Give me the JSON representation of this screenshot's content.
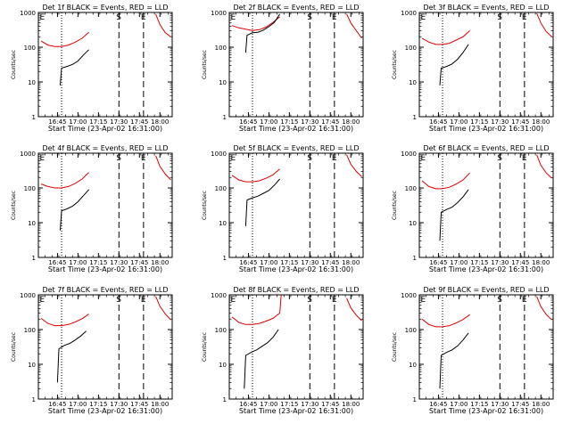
{
  "chart_data": [
    {
      "type": "line",
      "title": "Det 1f BLACK = Events, RED = LLD",
      "xlabel": "Start Time (23-Apr-02 16:31:00)",
      "ylabel": "Counts/sec",
      "x_tick_labels": [
        "16:45",
        "17:00",
        "17:15",
        "17:30",
        "17:45",
        "18:00"
      ],
      "y_tick_labels": [
        "1",
        "10",
        "100",
        "1000"
      ],
      "ylim": [
        1,
        1000
      ],
      "y_scale": "log",
      "xlim": [
        "16:31",
        "18:09"
      ],
      "markers": [
        {
          "label": "E",
          "x": "16:32"
        },
        {
          "label": "S",
          "x": "17:30"
        },
        {
          "label": "E",
          "x": "17:48"
        }
      ],
      "vlines": [
        {
          "x": "16:48",
          "style": "dotted"
        },
        {
          "x": "17:30",
          "style": "dashed"
        },
        {
          "x": "17:48",
          "style": "dashed"
        }
      ],
      "series": [
        {
          "name": "LLD",
          "color": "#e00000",
          "x": [
            "16:33",
            "16:38",
            "16:43",
            "16:48",
            "16:53",
            "16:58",
            "17:03",
            "17:08"
          ],
          "values": [
            150,
            115,
            105,
            105,
            115,
            140,
            180,
            270
          ],
          "x2": [
            "17:57",
            "18:00",
            "18:04",
            "18:08"
          ],
          "values2": [
            900,
            450,
            260,
            200
          ]
        },
        {
          "name": "Events",
          "color": "#000000",
          "x": [
            "16:47",
            "16:48",
            "16:52",
            "16:56",
            "17:00",
            "17:04",
            "17:08"
          ],
          "values": [
            8,
            25,
            28,
            32,
            40,
            60,
            85
          ]
        }
      ]
    },
    {
      "type": "line",
      "title": "Det 2f BLACK = Events, RED = LLD",
      "xlabel": "Start Time (23-Apr-02 16:31:00)",
      "ylabel": "Counts/sec",
      "x_tick_labels": [
        "16:45",
        "17:00",
        "17:15",
        "17:30",
        "17:45",
        "18:00"
      ],
      "y_tick_labels": [
        "1",
        "10",
        "100",
        "1000"
      ],
      "ylim": [
        1,
        1000
      ],
      "y_scale": "log",
      "xlim": [
        "16:31",
        "18:09"
      ],
      "markers": [
        {
          "label": "E",
          "x": "16:32"
        },
        {
          "label": "S",
          "x": "17:30"
        },
        {
          "label": "E",
          "x": "17:48"
        }
      ],
      "vlines": [
        {
          "x": "16:48",
          "style": "dotted"
        },
        {
          "x": "17:30",
          "style": "dashed"
        },
        {
          "x": "17:48",
          "style": "dashed"
        }
      ],
      "series": [
        {
          "name": "LLD",
          "color": "#e00000",
          "x": [
            "16:33",
            "16:38",
            "16:43",
            "16:48",
            "16:53",
            "16:58",
            "17:03",
            "17:08"
          ],
          "values": [
            420,
            360,
            330,
            300,
            320,
            380,
            520,
            750
          ],
          "x2": [
            "17:57",
            "18:00",
            "18:04",
            "18:08"
          ],
          "values2": [
            900,
            500,
            300,
            180
          ]
        },
        {
          "name": "Events",
          "color": "#000000",
          "x": [
            "16:43",
            "16:44",
            "16:48",
            "16:52",
            "16:56",
            "17:00",
            "17:04",
            "17:08"
          ],
          "values": [
            70,
            220,
            260,
            270,
            310,
            390,
            520,
            900
          ]
        }
      ]
    },
    {
      "type": "line",
      "title": "Det 3f BLACK = Events, RED = LLD",
      "xlabel": "Start Time (23-Apr-02 16:31:00)",
      "ylabel": "Counts/sec",
      "x_tick_labels": [
        "16:45",
        "17:00",
        "17:15",
        "17:30",
        "17:45",
        "18:00"
      ],
      "y_tick_labels": [
        "1",
        "10",
        "100",
        "1000"
      ],
      "ylim": [
        1,
        1000
      ],
      "y_scale": "log",
      "xlim": [
        "16:31",
        "18:09"
      ],
      "markers": [
        {
          "label": "E",
          "x": "16:32"
        },
        {
          "label": "S",
          "x": "17:30"
        },
        {
          "label": "E",
          "x": "17:48"
        }
      ],
      "vlines": [
        {
          "x": "16:48",
          "style": "dotted"
        },
        {
          "x": "17:30",
          "style": "dashed"
        },
        {
          "x": "17:48",
          "style": "dashed"
        }
      ],
      "series": [
        {
          "name": "LLD",
          "color": "#e00000",
          "x": [
            "16:33",
            "16:38",
            "16:43",
            "16:48",
            "16:53",
            "16:58",
            "17:03",
            "17:08"
          ],
          "values": [
            180,
            140,
            120,
            120,
            130,
            160,
            200,
            300
          ],
          "x2": [
            "17:57",
            "18:00",
            "18:04",
            "18:08"
          ],
          "values2": [
            950,
            500,
            280,
            200
          ]
        },
        {
          "name": "Events",
          "color": "#000000",
          "x": [
            "16:46",
            "16:47",
            "16:51",
            "16:55",
            "16:59",
            "17:03",
            "17:07"
          ],
          "values": [
            8,
            25,
            28,
            33,
            45,
            70,
            120
          ]
        }
      ]
    },
    {
      "type": "line",
      "title": "Det 4f BLACK = Events, RED = LLD",
      "xlabel": "Start Time (23-Apr-02 16:31:00)",
      "ylabel": "Counts/sec",
      "x_tick_labels": [
        "16:45",
        "17:00",
        "17:15",
        "17:30",
        "17:45",
        "18:00"
      ],
      "y_tick_labels": [
        "1",
        "10",
        "100",
        "1000"
      ],
      "ylim": [
        1,
        1000
      ],
      "y_scale": "log",
      "xlim": [
        "16:31",
        "18:09"
      ],
      "markers": [
        {
          "label": "E",
          "x": "16:32"
        },
        {
          "label": "S",
          "x": "17:30"
        },
        {
          "label": "E",
          "x": "17:48"
        }
      ],
      "vlines": [
        {
          "x": "16:48",
          "style": "dotted"
        },
        {
          "x": "17:30",
          "style": "dashed"
        },
        {
          "x": "17:48",
          "style": "dashed"
        }
      ],
      "series": [
        {
          "name": "LLD",
          "color": "#e00000",
          "x": [
            "16:33",
            "16:38",
            "16:43",
            "16:48",
            "16:53",
            "16:58",
            "17:03",
            "17:08"
          ],
          "values": [
            130,
            110,
            100,
            100,
            110,
            135,
            180,
            280
          ],
          "x2": [
            "17:57",
            "18:00",
            "18:04",
            "18:08"
          ],
          "values2": [
            850,
            420,
            250,
            170
          ]
        },
        {
          "name": "Events",
          "color": "#000000",
          "x": [
            "16:47",
            "16:48",
            "16:52",
            "16:56",
            "17:00",
            "17:04",
            "17:08"
          ],
          "values": [
            6,
            22,
            25,
            30,
            40,
            60,
            90
          ]
        }
      ]
    },
    {
      "type": "line",
      "title": "Det 5f BLACK = Events, RED = LLD",
      "xlabel": "Start Time (23-Apr-02 16:31:00)",
      "ylabel": "Counts/sec",
      "x_tick_labels": [
        "16:45",
        "17:00",
        "17:15",
        "17:30",
        "17:45",
        "18:00"
      ],
      "y_tick_labels": [
        "1",
        "10",
        "100",
        "1000"
      ],
      "ylim": [
        1,
        1000
      ],
      "y_scale": "log",
      "xlim": [
        "16:31",
        "18:09"
      ],
      "markers": [
        {
          "label": "E",
          "x": "16:32"
        },
        {
          "label": "S",
          "x": "17:30"
        },
        {
          "label": "E",
          "x": "17:48"
        }
      ],
      "vlines": [
        {
          "x": "16:48",
          "style": "dotted"
        },
        {
          "x": "17:30",
          "style": "dashed"
        },
        {
          "x": "17:48",
          "style": "dashed"
        }
      ],
      "series": [
        {
          "name": "LLD",
          "color": "#e00000",
          "x": [
            "16:33",
            "16:38",
            "16:43",
            "16:48",
            "16:53",
            "16:58",
            "17:03",
            "17:08"
          ],
          "values": [
            230,
            170,
            150,
            150,
            160,
            190,
            240,
            350
          ],
          "x2": [
            "17:57",
            "18:00",
            "18:04",
            "18:08"
          ],
          "values2": [
            900,
            480,
            300,
            210
          ]
        },
        {
          "name": "Events",
          "color": "#000000",
          "x": [
            "16:43",
            "16:44",
            "16:48",
            "16:52",
            "16:56",
            "17:00",
            "17:04",
            "17:08"
          ],
          "values": [
            8,
            45,
            52,
            58,
            70,
            85,
            120,
            180
          ]
        }
      ]
    },
    {
      "type": "line",
      "title": "Det 6f BLACK = Events, RED = LLD",
      "xlabel": "Start Time (23-Apr-02 16:31:00)",
      "ylabel": "Counts/sec",
      "x_tick_labels": [
        "16:45",
        "17:00",
        "17:15",
        "17:30",
        "17:45",
        "18:00"
      ],
      "y_tick_labels": [
        "1",
        "10",
        "100",
        "1000"
      ],
      "ylim": [
        1,
        1000
      ],
      "y_scale": "log",
      "xlim": [
        "16:31",
        "18:09"
      ],
      "markers": [
        {
          "label": "E",
          "x": "16:32"
        },
        {
          "label": "S",
          "x": "17:30"
        },
        {
          "label": "E",
          "x": "17:48"
        }
      ],
      "vlines": [
        {
          "x": "16:48",
          "style": "dotted"
        },
        {
          "x": "17:30",
          "style": "dashed"
        },
        {
          "x": "17:48",
          "style": "dashed"
        }
      ],
      "series": [
        {
          "name": "LLD",
          "color": "#e00000",
          "x": [
            "16:33",
            "16:38",
            "16:43",
            "16:48",
            "16:53",
            "16:58",
            "17:03",
            "17:08"
          ],
          "values": [
            160,
            110,
            95,
            95,
            105,
            130,
            170,
            270
          ],
          "x2": [
            "17:57",
            "18:00",
            "18:04",
            "18:08"
          ],
          "values2": [
            900,
            450,
            270,
            190
          ]
        },
        {
          "name": "Events",
          "color": "#000000",
          "x": [
            "16:46",
            "16:47",
            "16:51",
            "16:55",
            "16:59",
            "17:03",
            "17:07"
          ],
          "values": [
            3,
            20,
            24,
            28,
            38,
            55,
            90
          ]
        }
      ]
    },
    {
      "type": "line",
      "title": "Det 7f BLACK = Events, RED = LLD",
      "xlabel": "Start Time (23-Apr-02 16:31:00)",
      "ylabel": "Counts/sec",
      "x_tick_labels": [
        "16:45",
        "17:00",
        "17:15",
        "17:30",
        "17:45",
        "18:00"
      ],
      "y_tick_labels": [
        "1",
        "10",
        "100",
        "1000"
      ],
      "ylim": [
        1,
        1000
      ],
      "y_scale": "log",
      "xlim": [
        "16:31",
        "18:09"
      ],
      "markers": [
        {
          "label": "E",
          "x": "16:32"
        },
        {
          "label": "S",
          "x": "17:30"
        },
        {
          "label": "E",
          "x": "17:48"
        }
      ],
      "vlines": [
        {
          "x": "16:48",
          "style": "dotted"
        },
        {
          "x": "17:30",
          "style": "dashed"
        },
        {
          "x": "17:48",
          "style": "dashed"
        }
      ],
      "series": [
        {
          "name": "LLD",
          "color": "#e00000",
          "x": [
            "16:33",
            "16:38",
            "16:43",
            "16:48",
            "16:53",
            "16:58",
            "17:03",
            "17:08"
          ],
          "values": [
            210,
            150,
            130,
            130,
            140,
            165,
            205,
            280
          ],
          "x2": [
            "17:57",
            "18:00",
            "18:04",
            "18:08"
          ],
          "values2": [
            900,
            470,
            280,
            190
          ]
        },
        {
          "name": "Events",
          "color": "#000000",
          "x": [
            "16:45",
            "16:46",
            "16:50",
            "16:54",
            "16:58",
            "17:02",
            "17:06"
          ],
          "values": [
            3,
            28,
            35,
            40,
            50,
            65,
            90
          ]
        }
      ]
    },
    {
      "type": "line",
      "title": "Det 8f BLACK = Events, RED = LLD",
      "xlabel": "Start Time (23-Apr-02 16:31:00)",
      "ylabel": "Counts/sec",
      "x_tick_labels": [
        "16:45",
        "17:00",
        "17:15",
        "17:30",
        "17:45",
        "18:00"
      ],
      "y_tick_labels": [
        "1",
        "10",
        "100",
        "1000"
      ],
      "ylim": [
        1,
        1000
      ],
      "y_scale": "log",
      "xlim": [
        "16:31",
        "18:09"
      ],
      "markers": [
        {
          "label": "E",
          "x": "16:32"
        },
        {
          "label": "S",
          "x": "17:30"
        },
        {
          "label": "E",
          "x": "17:48"
        }
      ],
      "vlines": [
        {
          "x": "16:48",
          "style": "dotted"
        },
        {
          "x": "17:30",
          "style": "dashed"
        },
        {
          "x": "17:48",
          "style": "dashed"
        }
      ],
      "series": [
        {
          "name": "LLD",
          "color": "#e00000",
          "x": [
            "16:33",
            "16:38",
            "16:43",
            "16:48",
            "16:53",
            "16:58",
            "17:03",
            "17:08",
            "17:09"
          ],
          "values": [
            230,
            160,
            140,
            140,
            150,
            175,
            210,
            300,
            1000
          ],
          "x2": [
            "17:57",
            "18:00",
            "18:04",
            "18:08"
          ],
          "values2": [
            800,
            420,
            260,
            180
          ]
        },
        {
          "name": "Events",
          "color": "#000000",
          "x": [
            "16:42",
            "16:43",
            "16:47",
            "16:51",
            "16:55",
            "16:59",
            "17:03",
            "17:07"
          ],
          "values": [
            2,
            18,
            22,
            26,
            33,
            42,
            60,
            100
          ]
        }
      ]
    },
    {
      "type": "line",
      "title": "Det 9f BLACK = Events, RED = LLD",
      "xlabel": "Start Time (23-Apr-02 16:31:00)",
      "ylabel": "Counts/sec",
      "x_tick_labels": [
        "16:45",
        "17:00",
        "17:15",
        "17:30",
        "17:45",
        "18:00"
      ],
      "y_tick_labels": [
        "1",
        "10",
        "100",
        "1000"
      ],
      "ylim": [
        1,
        1000
      ],
      "y_scale": "log",
      "xlim": [
        "16:31",
        "18:09"
      ],
      "markers": [
        {
          "label": "E",
          "x": "16:32"
        },
        {
          "label": "S",
          "x": "17:30"
        },
        {
          "label": "E",
          "x": "17:48"
        }
      ],
      "vlines": [
        {
          "x": "16:48",
          "style": "dotted"
        },
        {
          "x": "17:30",
          "style": "dashed"
        },
        {
          "x": "17:48",
          "style": "dashed"
        }
      ],
      "series": [
        {
          "name": "LLD",
          "color": "#e00000",
          "x": [
            "16:33",
            "16:38",
            "16:43",
            "16:48",
            "16:53",
            "16:58",
            "17:03",
            "17:08"
          ],
          "values": [
            200,
            140,
            120,
            120,
            130,
            155,
            195,
            270
          ],
          "x2": [
            "17:57",
            "18:00",
            "18:04",
            "18:08"
          ],
          "values2": [
            900,
            460,
            270,
            190
          ]
        },
        {
          "name": "Events",
          "color": "#000000",
          "x": [
            "16:46",
            "16:47",
            "16:51",
            "16:55",
            "16:59",
            "17:03",
            "17:07"
          ],
          "values": [
            2,
            18,
            22,
            26,
            34,
            50,
            80
          ]
        }
      ]
    }
  ]
}
